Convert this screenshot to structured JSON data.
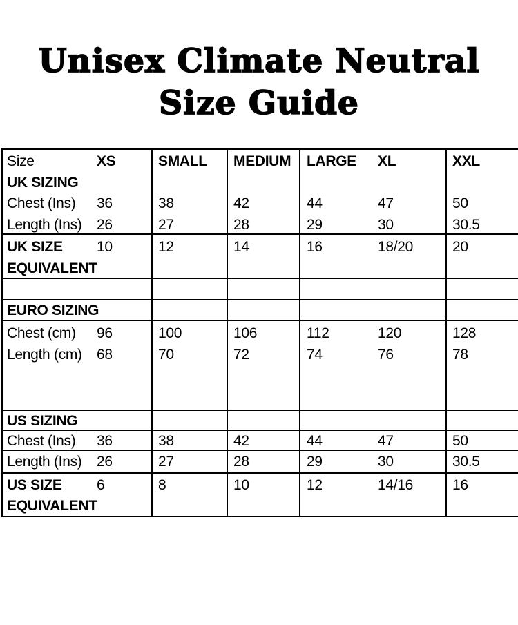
{
  "title": {
    "line1": "Unisex Climate Neutral",
    "line2": "Size Guide"
  },
  "table": {
    "header": {
      "size_label": "Size",
      "xs": "XS",
      "small": "SMALL",
      "medium": "MEDIUM",
      "large": "LARGE",
      "xl": "XL",
      "xxl": "XXL"
    },
    "uk": {
      "section_label": "UK SIZING",
      "chest": {
        "label": "Chest (Ins)",
        "values": [
          "36",
          "38",
          "42",
          "44",
          "47",
          "50"
        ]
      },
      "length": {
        "label": "Length (Ins)",
        "values": [
          "26",
          "27",
          "28",
          "29",
          "30",
          "30.5"
        ]
      },
      "equivalent": {
        "label_line1": "UK SIZE",
        "label_line2": "EQUIVALENT",
        "values": [
          "10",
          "12",
          "14",
          "16",
          "18/20",
          "20"
        ]
      }
    },
    "euro": {
      "section_label": "EURO SIZING",
      "chest": {
        "label": "Chest (cm)",
        "values": [
          "96",
          "100",
          "106",
          "112",
          "120",
          "128"
        ]
      },
      "length": {
        "label": "Length (cm)",
        "values": [
          "68",
          "70",
          "72",
          "74",
          "76",
          "78"
        ]
      }
    },
    "us": {
      "section_label": "US SIZING",
      "chest": {
        "label": "Chest (Ins)",
        "values": [
          "36",
          "38",
          "42",
          "44",
          "47",
          "50"
        ]
      },
      "length": {
        "label": "Length (Ins)",
        "values": [
          "26",
          "27",
          "28",
          "29",
          "30",
          "30.5"
        ]
      },
      "equivalent": {
        "label_line1": "US SIZE",
        "label_line2": "EQUIVALENT",
        "values": [
          "6",
          "8",
          "10",
          "12",
          "14/16",
          "16"
        ]
      }
    }
  },
  "colors": {
    "text": "#000000",
    "border": "#000000",
    "background": "#ffffff"
  }
}
